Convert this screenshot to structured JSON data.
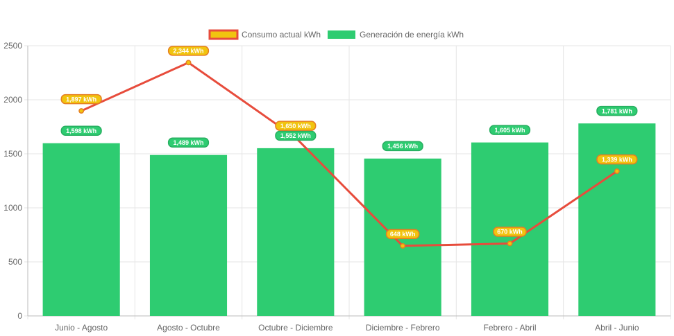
{
  "chart_data": {
    "type": "bar",
    "categories": [
      "Junio - Agosto",
      "Agosto - Octubre",
      "Octubre - Diciembre",
      "Diciembre - Febrero",
      "Febrero - Abril",
      "Abril - Junio"
    ],
    "series": [
      {
        "name": "Consumo actual kWh",
        "type": "line",
        "values": [
          1897,
          2344,
          1650,
          648,
          670,
          1339
        ],
        "labels": [
          "1,897 kWh",
          "2,344 kWh",
          "1,650 kWh",
          "648 kWh",
          "670 kWh",
          "1,339 kWh"
        ],
        "color": "#e74c3c",
        "fill_color": "#f1c40f"
      },
      {
        "name": "Generación de energía kWh",
        "type": "bar",
        "values": [
          1598,
          1489,
          1552,
          1456,
          1605,
          1781
        ],
        "labels": [
          "1,598 kWh",
          "1,489 kWh",
          "1,552 kWh",
          "1,456 kWh",
          "1,605 kWh",
          "1,781 kWh"
        ],
        "color": "#2ecc71"
      }
    ],
    "yticks": [
      "0",
      "500",
      "1000",
      "1500",
      "2000",
      "2500"
    ],
    "ylim": [
      0,
      2500
    ],
    "grid": true,
    "legend": "top-center"
  }
}
